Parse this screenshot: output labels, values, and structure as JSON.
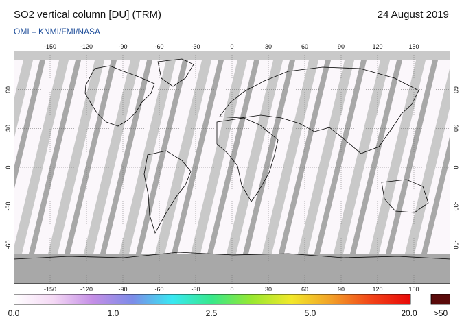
{
  "header": {
    "title": "SO2 vertical column [DU] (TRM)",
    "date": "24 August 2019",
    "credit": "OMI  –  KNMI/FMI/NASA"
  },
  "map": {
    "lon_ticks": [
      "-150",
      "-120",
      "-90",
      "-60",
      "-30",
      "0",
      "30",
      "60",
      "90",
      "120",
      "150"
    ],
    "lat_ticks": [
      "60",
      "30",
      "0",
      "-30",
      "-60"
    ],
    "colors": {
      "no_data": "#c9c9c9",
      "low_sun": "#a8a8a8",
      "background": "#fbf7fb",
      "coast": "#000000"
    }
  },
  "colorbar": {
    "labels": [
      "0.0",
      "1.0",
      "2.5",
      "5.0",
      "20.0"
    ],
    "overflow_label": ">50",
    "overflow_color": "#5a0a0a",
    "gradient": [
      "#ffffff",
      "#f4d8f4",
      "#c48ee6",
      "#7c8ce8",
      "#38e8f2",
      "#38e88a",
      "#98e830",
      "#f2e82a",
      "#f2a028",
      "#f24418",
      "#e80808"
    ]
  }
}
